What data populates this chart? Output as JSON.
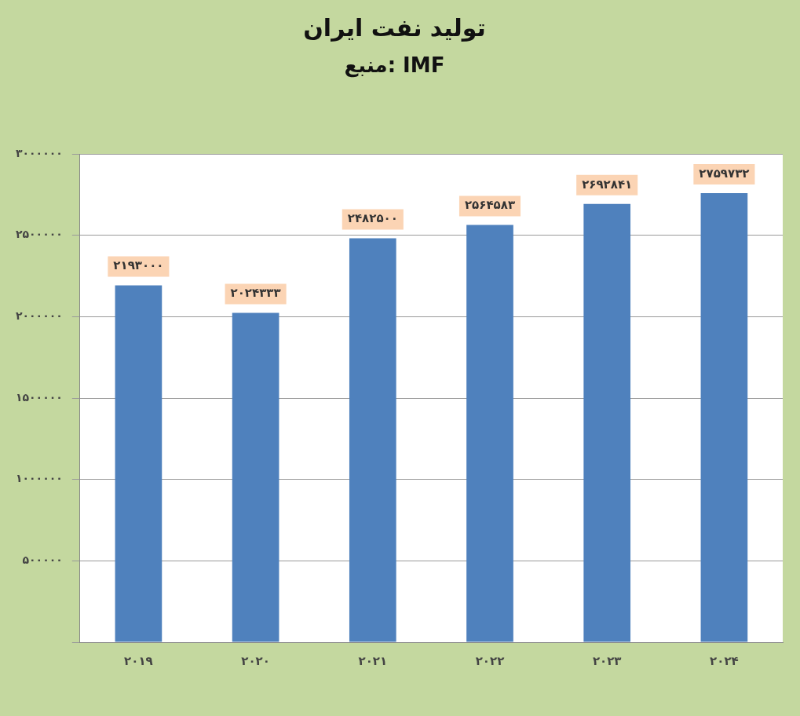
{
  "chart_data": {
    "type": "bar",
    "title": "تولید نفت ایران",
    "subtitle": "منبع: IMF",
    "categories": [
      "۲۰۱۹",
      "۲۰۲۰",
      "۲۰۲۱",
      "۲۰۲۲",
      "۲۰۲۳",
      "۲۰۲۴"
    ],
    "values": [
      2193000,
      2024333,
      2482500,
      2564583,
      2692841,
      2759732
    ],
    "value_labels": [
      "۲۱۹۳۰۰۰",
      "۲۰۲۴۳۳۳",
      "۲۴۸۲۵۰۰",
      "۲۵۶۴۵۸۳",
      "۲۶۹۲۸۴۱",
      "۲۷۵۹۷۳۲"
    ],
    "color": "#4f81bd",
    "ylim": [
      0,
      3000000
    ],
    "yticks": [
      {
        "value": 0,
        "label": null
      },
      {
        "value": 500000,
        "label": "۵۰۰۰۰۰"
      },
      {
        "value": 1000000,
        "label": "۱۰۰۰۰۰۰"
      },
      {
        "value": 1500000,
        "label": "۱۵۰۰۰۰۰"
      },
      {
        "value": 2000000,
        "label": "۲۰۰۰۰۰۰"
      },
      {
        "value": 2500000,
        "label": "۲۵۰۰۰۰۰"
      },
      {
        "value": 3000000,
        "label": "۳۰۰۰۰۰۰"
      }
    ],
    "grid": true
  }
}
